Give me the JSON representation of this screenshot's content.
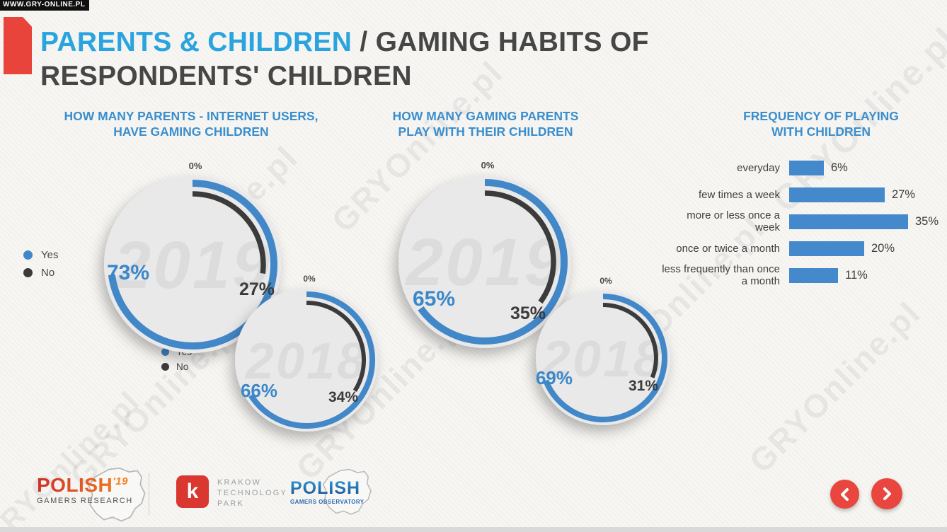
{
  "site_banner": {
    "text": "WWW.GRY-ONLINE.PL"
  },
  "watermark": {
    "text": "GRYOnline.pl"
  },
  "title": {
    "highlight": "PARENTS & CHILDREN",
    "rest": " / GAMING HABITS OF",
    "line2": "RESPONDENTS' CHILDREN"
  },
  "legend": {
    "yes_label": "Yes",
    "no_label": "No",
    "yes_color": "#4287c8",
    "no_color": "#3b3b3b"
  },
  "chart_data": [
    {
      "id": "parents-with-gaming-children",
      "type": "donut",
      "title_line1": "HOW MANY PARENTS -  INTERNET USERS,",
      "title_line2": "HAVE GAMING CHILDREN",
      "legend": [
        "Yes",
        "No"
      ],
      "series": [
        {
          "year": "2019",
          "yes": 73,
          "no": 27,
          "start_label": "0%"
        },
        {
          "year": "2018",
          "yes": 66,
          "no": 34,
          "start_label": "0%"
        }
      ]
    },
    {
      "id": "gaming-parents-play-with-children",
      "type": "donut",
      "title_line1": "HOW MANY GAMING PARENTS",
      "title_line2": "PLAY WITH THEIR CHILDREN",
      "series": [
        {
          "year": "2019",
          "yes": 65,
          "no": 35,
          "start_label": "0%"
        },
        {
          "year": "2018",
          "yes": 69,
          "no": 31,
          "start_label": "0%"
        }
      ]
    },
    {
      "id": "frequency-of-playing-with-children",
      "type": "bar",
      "title_line1": "FREQUENCY OF PLAYING",
      "title_line2": "WITH CHILDREN",
      "categories": [
        "everyday",
        "few times a week",
        "more or less once a week",
        "once or twice a month",
        "less frequently than once a month"
      ],
      "values": [
        6,
        27,
        35,
        20,
        11
      ],
      "value_suffix": "%",
      "bar_color": "#4489cb"
    }
  ],
  "colors": {
    "accent_blue": "#4287c8",
    "title_blue": "#29a4df",
    "header_blue": "#3a8ecd",
    "dark": "#3b3b3b",
    "red": "#e8463e",
    "circle_fill": "#e9e9ea"
  },
  "footer": {
    "logo_polish19": {
      "name": "POLISH",
      "year_sup": "'19",
      "subtitle": "GAMERS RESEARCH"
    },
    "logo_ktp": {
      "letter": "k",
      "line1": "KRAKOW",
      "line2": "TECHNOLOGY",
      "line3": "PARK"
    },
    "logo_observatory": {
      "name": "POLISH",
      "subtitle": "GAMERS OBSERVATORY"
    }
  }
}
